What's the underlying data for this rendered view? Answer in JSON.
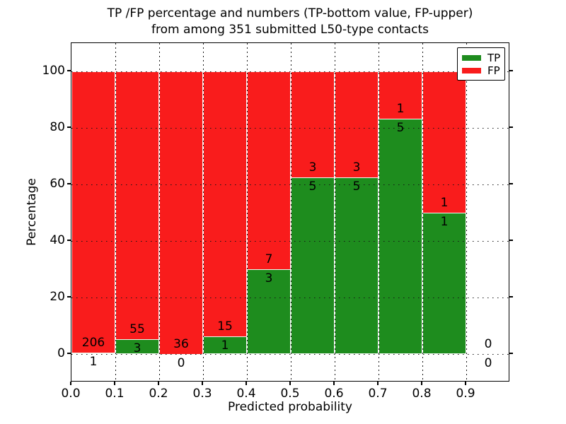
{
  "figure": {
    "title_lines": [
      "TP /FP percentage and numbers (TP-bottom value, FP-upper)",
      "from among 351 submitted L50-type contacts"
    ]
  },
  "chart_data": {
    "type": "bar",
    "stacked": true,
    "title": "TP /FP percentage and numbers (TP-bottom value, FP-upper) from among 351 submitted L50-type contacts",
    "xlabel": "Predicted probability",
    "ylabel": "Percentage",
    "xlim": [
      0.0,
      1.0
    ],
    "ylim": [
      -10,
      110
    ],
    "grid": "dotted",
    "bin_width": 0.1,
    "categories": [
      "0.0-0.1",
      "0.1-0.2",
      "0.2-0.3",
      "0.3-0.4",
      "0.4-0.5",
      "0.5-0.6",
      "0.6-0.7",
      "0.7-0.8",
      "0.8-0.9",
      "0.9-1.0"
    ],
    "xtick_labels": [
      "0.0",
      "0.1",
      "0.2",
      "0.3",
      "0.4",
      "0.5",
      "0.6",
      "0.7",
      "0.8",
      "0.9"
    ],
    "ytick_values": [
      0,
      20,
      40,
      60,
      80,
      100
    ],
    "ytick_labels": [
      "0",
      "20",
      "40",
      "60",
      "80",
      "100"
    ],
    "series": [
      {
        "name": "TP",
        "color": "#1e8c1e",
        "counts": [
          1,
          3,
          0,
          1,
          3,
          5,
          5,
          5,
          1,
          0
        ]
      },
      {
        "name": "FP",
        "color": "#f91c1c",
        "counts": [
          206,
          55,
          36,
          15,
          7,
          3,
          3,
          1,
          1,
          0
        ]
      }
    ],
    "tp_percent_by_bin": [
      0.5,
      5.2,
      0.0,
      6.3,
      30.0,
      62.5,
      62.5,
      83.3,
      50.0,
      0.0
    ],
    "total_contacts": 351,
    "legend": {
      "position": "upper right",
      "entries": [
        "TP",
        "FP"
      ]
    }
  }
}
